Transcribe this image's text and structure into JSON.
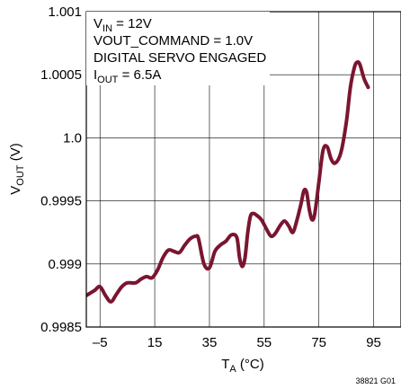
{
  "chart_data": {
    "type": "line",
    "xlabel": {
      "main": "T",
      "sub": "A",
      "unit": " (°C)"
    },
    "ylabel": {
      "main": "V",
      "sub": "OUT",
      "unit": " (V)"
    },
    "xlim": [
      -10,
      105
    ],
    "ylim": [
      0.9985,
      1.001
    ],
    "x_ticks": [
      {
        "value": -5,
        "label": "–5"
      },
      {
        "value": 15,
        "label": "15"
      },
      {
        "value": 35,
        "label": "35"
      },
      {
        "value": 55,
        "label": "55"
      },
      {
        "value": 75,
        "label": "75"
      },
      {
        "value": 95,
        "label": "95"
      }
    ],
    "y_ticks": [
      {
        "value": 0.9985,
        "label": "0.9985"
      },
      {
        "value": 0.999,
        "label": "0.999"
      },
      {
        "value": 0.9995,
        "label": "0.9995"
      },
      {
        "value": 1.0,
        "label": "1.0"
      },
      {
        "value": 1.0005,
        "label": "1.0005"
      },
      {
        "value": 1.001,
        "label": "1.001"
      }
    ],
    "grid": true,
    "line_color": "#7a1530",
    "series": [
      {
        "points": [
          [
            -10,
            0.99875
          ],
          [
            -7,
            0.99879
          ],
          [
            -5,
            0.99882
          ],
          [
            -3,
            0.99875
          ],
          [
            -1,
            0.9987
          ],
          [
            1,
            0.99876
          ],
          [
            3,
            0.99882
          ],
          [
            5,
            0.99885
          ],
          [
            8,
            0.99885
          ],
          [
            10,
            0.99888
          ],
          [
            12,
            0.9989
          ],
          [
            14,
            0.99889
          ],
          [
            16,
            0.99895
          ],
          [
            18,
            0.99905
          ],
          [
            20,
            0.99911
          ],
          [
            22,
            0.9991
          ],
          [
            24,
            0.99909
          ],
          [
            26,
            0.99915
          ],
          [
            28,
            0.9992
          ],
          [
            30,
            0.99922
          ],
          [
            31,
            0.9992
          ],
          [
            33,
            0.999
          ],
          [
            35,
            0.99897
          ],
          [
            37,
            0.9991
          ],
          [
            39,
            0.99915
          ],
          [
            41,
            0.99918
          ],
          [
            43,
            0.99923
          ],
          [
            45,
            0.99921
          ],
          [
            46,
            0.99905
          ],
          [
            47,
            0.99898
          ],
          [
            48,
            0.99905
          ],
          [
            49,
            0.99925
          ],
          [
            50,
            0.99938
          ],
          [
            51,
            0.9994
          ],
          [
            52,
            0.99939
          ],
          [
            54,
            0.99935
          ],
          [
            56,
            0.99927
          ],
          [
            57.5,
            0.99922
          ],
          [
            59,
            0.99924
          ],
          [
            61,
            0.99931
          ],
          [
            62.5,
            0.99934
          ],
          [
            64,
            0.9993
          ],
          [
            65.5,
            0.99925
          ],
          [
            67,
            0.99935
          ],
          [
            68.5,
            0.99948
          ],
          [
            69.5,
            0.99958
          ],
          [
            70.5,
            0.99957
          ],
          [
            71.5,
            0.99943
          ],
          [
            72.5,
            0.99935
          ],
          [
            73.5,
            0.9994
          ],
          [
            75,
            0.99965
          ],
          [
            76.5,
            0.9999
          ],
          [
            78,
            0.99993
          ],
          [
            79.5,
            0.99983
          ],
          [
            81,
            0.9998
          ],
          [
            83,
            0.99988
          ],
          [
            85,
            1.00012
          ],
          [
            86.5,
            1.0004
          ],
          [
            88,
            1.00056
          ],
          [
            89,
            1.0006
          ],
          [
            90,
            1.00058
          ],
          [
            91.5,
            1.00047
          ],
          [
            93,
            1.0004
          ]
        ]
      }
    ],
    "annotations": [
      {
        "main": "V",
        "sub": "IN",
        "rest": " = 12V"
      },
      {
        "main": "VOUT_COMMAND = 1.0V",
        "sub": "",
        "rest": ""
      },
      {
        "main": "DIGITAL SERVO ENGAGED",
        "sub": "",
        "rest": ""
      },
      {
        "main": "I",
        "sub": "OUT",
        "rest": " = 6.5A"
      }
    ],
    "figure_code": "38821 G01"
  }
}
